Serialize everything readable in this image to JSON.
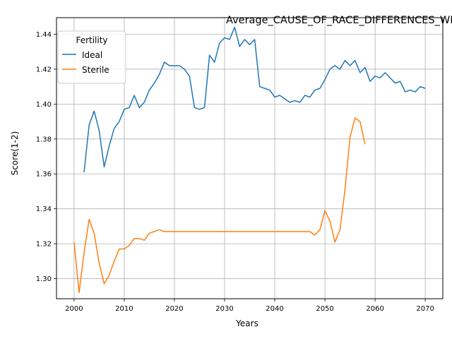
{
  "chart_data": {
    "type": "line",
    "title": "Average_CAUSE_OF_RACE_DIFFERENCES_WILL_Female_Above_Average_",
    "xlabel": "Years",
    "ylabel": "Score(1-2)",
    "xlim": [
      1996.5,
      2073.5
    ],
    "ylim": [
      1.2885,
      1.4495
    ],
    "x_ticks": [
      2000,
      2010,
      2020,
      2030,
      2040,
      2050,
      2060,
      2070
    ],
    "y_ticks": [
      1.3,
      1.32,
      1.34,
      1.36,
      1.38,
      1.4,
      1.42,
      1.44
    ],
    "y_tick_labels": [
      "1.30",
      "1.32",
      "1.34",
      "1.36",
      "1.38",
      "1.40",
      "1.42",
      "1.44"
    ],
    "grid": true,
    "legend": {
      "title": "Fertility",
      "position": "top-left"
    },
    "series": [
      {
        "name": "Ideal",
        "color": "#1f77b4",
        "x": [
          2002,
          2003,
          2004,
          2005,
          2006,
          2007,
          2008,
          2009,
          2010,
          2011,
          2012,
          2013,
          2014,
          2015,
          2016,
          2017,
          2018,
          2019,
          2020,
          2021,
          2022,
          2023,
          2024,
          2025,
          2026,
          2027,
          2028,
          2029,
          2030,
          2031,
          2032,
          2033,
          2034,
          2035,
          2036,
          2037,
          2038,
          2039,
          2040,
          2041,
          2042,
          2043,
          2044,
          2045,
          2046,
          2047,
          2048,
          2049,
          2050,
          2051,
          2052,
          2053,
          2054,
          2055,
          2056,
          2057,
          2058,
          2059,
          2060,
          2061,
          2062,
          2063,
          2064,
          2065,
          2066,
          2067,
          2068,
          2069,
          2070
        ],
        "y": [
          1.361,
          1.388,
          1.396,
          1.385,
          1.364,
          1.376,
          1.386,
          1.39,
          1.397,
          1.398,
          1.405,
          1.398,
          1.401,
          1.408,
          1.412,
          1.417,
          1.424,
          1.422,
          1.422,
          1.422,
          1.42,
          1.416,
          1.398,
          1.397,
          1.398,
          1.428,
          1.424,
          1.435,
          1.438,
          1.437,
          1.444,
          1.433,
          1.437,
          1.434,
          1.437,
          1.41,
          1.409,
          1.408,
          1.404,
          1.405,
          1.403,
          1.401,
          1.402,
          1.401,
          1.405,
          1.404,
          1.408,
          1.409,
          1.414,
          1.42,
          1.422,
          1.42,
          1.425,
          1.422,
          1.425,
          1.418,
          1.421,
          1.413,
          1.416,
          1.415,
          1.418,
          1.415,
          1.412,
          1.413,
          1.407,
          1.408,
          1.407,
          1.41,
          1.409
        ]
      },
      {
        "name": "Sterile",
        "color": "#ff7f0e",
        "x": [
          2000,
          2001,
          2002,
          2003,
          2004,
          2005,
          2006,
          2007,
          2008,
          2009,
          2010,
          2011,
          2012,
          2013,
          2014,
          2015,
          2016,
          2017,
          2018,
          2019,
          2020,
          2021,
          2022,
          2023,
          2024,
          2025,
          2026,
          2027,
          2028,
          2029,
          2030,
          2031,
          2032,
          2033,
          2034,
          2035,
          2036,
          2037,
          2038,
          2039,
          2040,
          2041,
          2042,
          2043,
          2044,
          2045,
          2046,
          2047,
          2048,
          2049,
          2050,
          2051,
          2052,
          2053,
          2054,
          2055,
          2056,
          2057,
          2058
        ],
        "y": [
          1.321,
          1.292,
          1.315,
          1.334,
          1.326,
          1.309,
          1.297,
          1.302,
          1.31,
          1.317,
          1.317,
          1.319,
          1.323,
          1.323,
          1.322,
          1.326,
          1.327,
          1.328,
          1.327,
          1.327,
          1.327,
          1.327,
          1.327,
          1.327,
          1.327,
          1.327,
          1.327,
          1.327,
          1.327,
          1.327,
          1.327,
          1.327,
          1.327,
          1.327,
          1.327,
          1.327,
          1.327,
          1.327,
          1.327,
          1.327,
          1.327,
          1.327,
          1.327,
          1.327,
          1.327,
          1.327,
          1.327,
          1.327,
          1.325,
          1.328,
          1.339,
          1.333,
          1.321,
          1.328,
          1.351,
          1.381,
          1.392,
          1.39,
          1.377
        ]
      }
    ]
  }
}
